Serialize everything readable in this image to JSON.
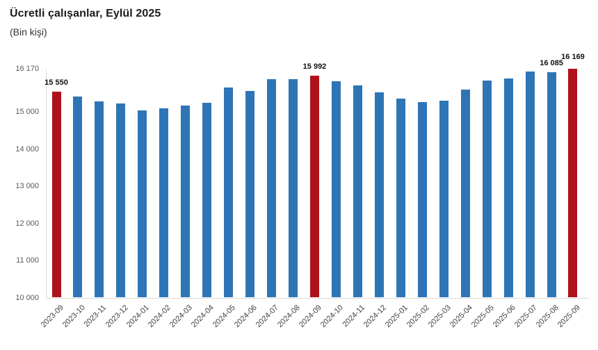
{
  "header": {
    "title": "Ücretli çalışanlar, Eylül 2025",
    "subtitle": "(Bin kişi)"
  },
  "chart_data": {
    "type": "bar",
    "title": "Ücretli çalışanlar, Eylül 2025",
    "subtitle": "(Bin kişi)",
    "xlabel": "",
    "ylabel": "Bin kişi",
    "ylim": [
      10000,
      16170
    ],
    "grid": false,
    "legend": false,
    "categories": [
      "2023-09",
      "2023-10",
      "2023-11",
      "2023-12",
      "2024-01",
      "2024-02",
      "2024-03",
      "2024-04",
      "2024-05",
      "2024-06",
      "2024-07",
      "2024-08",
      "2024-09",
      "2024-10",
      "2024-11",
      "2024-12",
      "2025-01",
      "2025-02",
      "2025-03",
      "2025-04",
      "2025-05",
      "2025-06",
      "2025-07",
      "2025-08",
      "2025-09"
    ],
    "values": [
      15550,
      15430,
      15290,
      15230,
      15050,
      15100,
      15180,
      15260,
      15670,
      15570,
      15890,
      15880,
      15992,
      15840,
      15720,
      15540,
      15370,
      15270,
      15300,
      15600,
      15850,
      15900,
      16090,
      16085,
      16169
    ],
    "y_ticks": [
      {
        "label": "16 170",
        "value": 16170
      },
      {
        "label": "15 000",
        "value": 15000
      },
      {
        "label": "14 000",
        "value": 14000
      },
      {
        "label": "13 000",
        "value": 13000
      },
      {
        "label": "12 000",
        "value": 12000
      },
      {
        "label": "11 000",
        "value": 11000
      },
      {
        "label": "10 000",
        "value": 10000
      }
    ],
    "colors": {
      "bar": "#2E75B6",
      "highlight": "#AF121B",
      "axis": "#d9d9d9"
    },
    "highlight_indices": [
      0,
      12,
      24
    ],
    "point_labels": [
      {
        "index": 0,
        "text": "15 550"
      },
      {
        "index": 12,
        "text": "15 992"
      },
      {
        "index": 23,
        "text": "16 085"
      },
      {
        "index": 24,
        "text": "16 169"
      }
    ]
  }
}
